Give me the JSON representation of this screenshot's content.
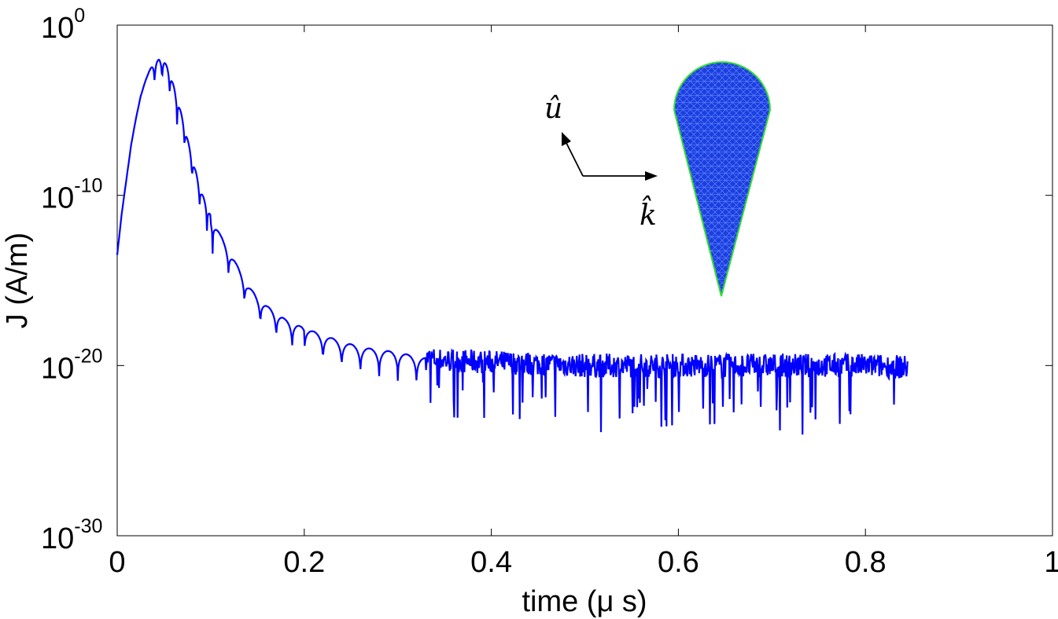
{
  "chart_data": {
    "type": "line",
    "xlabel": "time (μ s)",
    "ylabel": "J (A/m)",
    "xlim": [
      0,
      1
    ],
    "ylim_exponents": [
      -30,
      0
    ],
    "yscale": "log",
    "x_ticks": [
      "0",
      "0.2",
      "0.4",
      "0.6",
      "0.8",
      "1"
    ],
    "y_ticks": [
      {
        "base": "10",
        "exp": "0"
      },
      {
        "base": "10",
        "exp": "-10"
      },
      {
        "base": "10",
        "exp": "-20"
      },
      {
        "base": "10",
        "exp": "-30"
      }
    ],
    "grid": false,
    "series": [
      {
        "color": "#0000ff",
        "x": [
          0.0,
          0.005,
          0.01,
          0.015,
          0.02,
          0.025,
          0.03,
          0.035,
          0.04,
          0.045,
          0.05,
          0.055,
          0.06,
          0.07,
          0.08,
          0.09,
          0.1,
          0.11,
          0.12,
          0.13,
          0.14,
          0.15,
          0.16,
          0.18,
          0.2,
          0.22,
          0.24,
          0.26,
          0.28,
          0.3,
          0.32,
          0.35,
          0.4,
          0.45,
          0.5,
          0.55,
          0.6,
          0.65,
          0.7,
          0.75,
          0.8,
          0.845
        ],
        "y_exponent": [
          -13.5,
          -11.0,
          -9.0,
          -7.0,
          -5.5,
          -4.2,
          -3.3,
          -2.6,
          -2.2,
          -2.0,
          -2.1,
          -2.6,
          -3.5,
          -5.5,
          -7.8,
          -9.8,
          -11.2,
          -12.3,
          -13.3,
          -14.3,
          -15.3,
          -16.0,
          -16.5,
          -17.3,
          -17.8,
          -18.2,
          -18.6,
          -18.9,
          -19.1,
          -19.2,
          -19.5,
          -19.7,
          -19.8,
          -19.9,
          -20.0,
          -20.0,
          -20.0,
          -20.0,
          -20.0,
          -20.0,
          -20.0,
          -20.1
        ]
      }
    ]
  },
  "inset": {
    "u_label": "û",
    "k_label": "k̂",
    "mesh_fill": "#1a3fe0",
    "mesh_edge": "#33dd33"
  }
}
